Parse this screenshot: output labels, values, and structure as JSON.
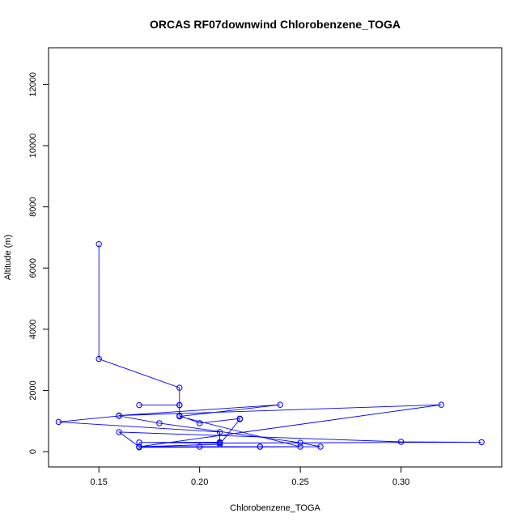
{
  "chart_data": {
    "type": "line",
    "title": "ORCAS RF07downwind Chlorobenzene_TOGA",
    "xlabel": "Chlorobenzene_TOGA",
    "ylabel": "Altitude (m)",
    "xlim": [
      0.125,
      0.35
    ],
    "ylim": [
      -500,
      13200
    ],
    "xticks": [
      0.15,
      0.2,
      0.25,
      0.3
    ],
    "xtick_labels": [
      "0.15",
      "0.20",
      "0.25",
      "0.30"
    ],
    "yticks": [
      0,
      2000,
      4000,
      6000,
      8000,
      10000,
      12000
    ],
    "ytick_labels": [
      "0",
      "2000",
      "4000",
      "6000",
      "8000",
      "10000",
      "12000"
    ],
    "grid": false,
    "color": "#0000ff",
    "series": [
      {
        "x": [
          0.15,
          0.15,
          0.19,
          0.19,
          0.17,
          0.19,
          0.19,
          0.2,
          0.22,
          0.22,
          0.21,
          0.17,
          0.17,
          0.26,
          0.25,
          0.18,
          0.16,
          0.13,
          0.21,
          0.21,
          0.17,
          0.21,
          0.34,
          0.3,
          0.16,
          0.17,
          0.23,
          0.2,
          0.25,
          0.19,
          0.24,
          0.16,
          0.32,
          0.17,
          0.17,
          0.23
        ],
        "y": [
          6780,
          3030,
          2090,
          1520,
          1520,
          1520,
          1180,
          930,
          1080,
          1060,
          240,
          160,
          140,
          160,
          290,
          930,
          1170,
          970,
          640,
          310,
          300,
          280,
          310,
          320,
          640,
          160,
          160,
          160,
          160,
          1150,
          1530,
          1180,
          1530,
          160,
          160,
          160
        ]
      }
    ]
  }
}
